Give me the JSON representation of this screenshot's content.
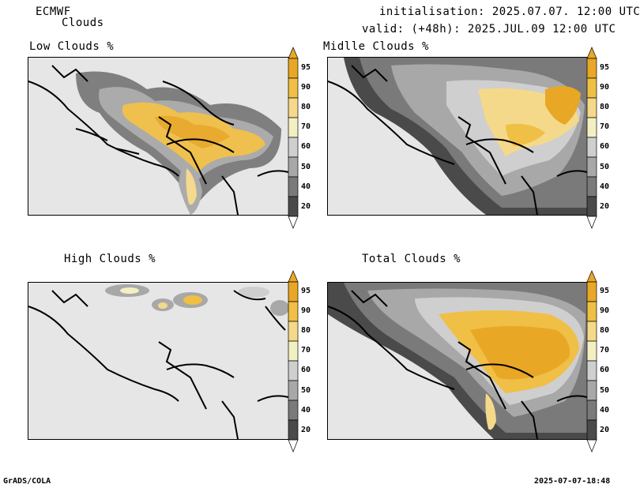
{
  "header": {
    "model": "ECMWF",
    "product": "Clouds",
    "init": "initialisation: 2025.07.07. 12:00 UTC",
    "valid": "valid: (+48h): 2025.JUL.09 12:00 UTC"
  },
  "panels": [
    {
      "title": "Low Clouds %"
    },
    {
      "title": "Midlle Clouds %"
    },
    {
      "title": "High Clouds %"
    },
    {
      "title": "Total Clouds %"
    }
  ],
  "colorbar": {
    "labels": [
      "95",
      "90",
      "80",
      "70",
      "60",
      "50",
      "40",
      "20"
    ],
    "colors": [
      "#e9a726",
      "#f0bf45",
      "#f5d98a",
      "#f2f0c2",
      "#cfcfcf",
      "#a8a8a8",
      "#7a7a7a",
      "#4a4a4a",
      "#ffffff"
    ]
  },
  "footer": {
    "left": "GrADS/COLA",
    "right": "2025-07-07-18:48"
  }
}
